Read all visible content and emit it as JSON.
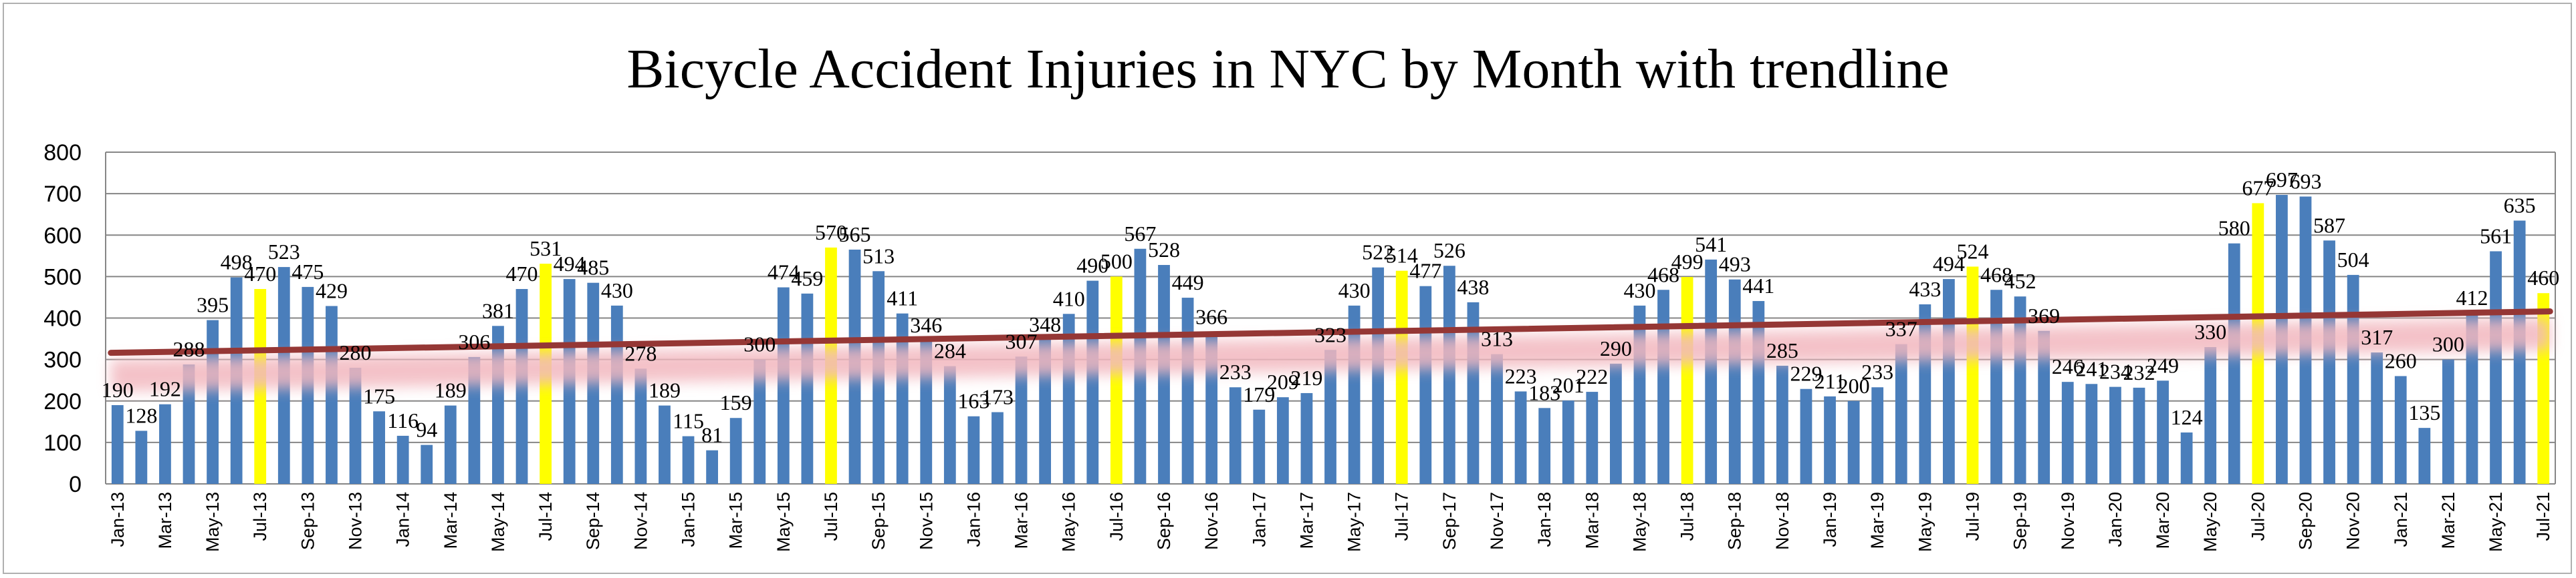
{
  "chart_data": {
    "type": "bar",
    "title": "Bicycle Accident Injuries in NYC by Month with trendline",
    "xlabel": "",
    "ylabel": "",
    "ylim": [
      0,
      800
    ],
    "yticks": [
      0,
      100,
      200,
      300,
      400,
      500,
      600,
      700,
      800
    ],
    "grid": true,
    "legend": "none",
    "categories": [
      "Jan-13",
      "Feb-13",
      "Mar-13",
      "Apr-13",
      "May-13",
      "Jun-13",
      "Jul-13",
      "Aug-13",
      "Sep-13",
      "Oct-13",
      "Nov-13",
      "Dec-13",
      "Jan-14",
      "Feb-14",
      "Mar-14",
      "Apr-14",
      "May-14",
      "Jun-14",
      "Jul-14",
      "Aug-14",
      "Sep-14",
      "Oct-14",
      "Nov-14",
      "Dec-14",
      "Jan-15",
      "Feb-15",
      "Mar-15",
      "Apr-15",
      "May-15",
      "Jun-15",
      "Jul-15",
      "Aug-15",
      "Sep-15",
      "Oct-15",
      "Nov-15",
      "Dec-15",
      "Jan-16",
      "Feb-16",
      "Mar-16",
      "Apr-16",
      "May-16",
      "Jun-16",
      "Jul-16",
      "Aug-16",
      "Sep-16",
      "Oct-16",
      "Nov-16",
      "Dec-16",
      "Jan-17",
      "Feb-17",
      "Mar-17",
      "Apr-17",
      "May-17",
      "Jun-17",
      "Jul-17",
      "Aug-17",
      "Sep-17",
      "Oct-17",
      "Nov-17",
      "Dec-17",
      "Jan-18",
      "Feb-18",
      "Mar-18",
      "Apr-18",
      "May-18",
      "Jun-18",
      "Jul-18",
      "Aug-18",
      "Sep-18",
      "Oct-18",
      "Nov-18",
      "Dec-18",
      "Jan-19",
      "Feb-19",
      "Mar-19",
      "Apr-19",
      "May-19",
      "Jun-19",
      "Jul-19",
      "Aug-19",
      "Sep-19",
      "Oct-19",
      "Nov-19",
      "Dec-19",
      "Jan-20",
      "Feb-20",
      "Mar-20",
      "Apr-20",
      "May-20",
      "Jun-20",
      "Jul-20",
      "Aug-20",
      "Sep-20",
      "Oct-20",
      "Nov-20",
      "Dec-20",
      "Jan-21",
      "Feb-21",
      "Mar-21",
      "Apr-21",
      "May-21",
      "Jun-21",
      "Jul-21"
    ],
    "values": [
      190,
      128,
      192,
      288,
      395,
      498,
      470,
      523,
      475,
      429,
      280,
      175,
      116,
      94,
      189,
      306,
      381,
      470,
      531,
      494,
      485,
      430,
      278,
      189,
      115,
      81,
      159,
      300,
      474,
      459,
      570,
      565,
      513,
      411,
      346,
      284,
      163,
      173,
      307,
      348,
      410,
      490,
      500,
      567,
      528,
      449,
      366,
      233,
      179,
      209,
      219,
      323,
      430,
      522,
      514,
      477,
      526,
      438,
      313,
      223,
      183,
      201,
      222,
      290,
      430,
      468,
      499,
      541,
      493,
      441,
      285,
      229,
      211,
      200,
      233,
      337,
      433,
      494,
      524,
      468,
      452,
      369,
      246,
      241,
      234,
      232,
      249,
      124,
      330,
      580,
      677,
      697,
      693,
      587,
      504,
      317,
      260,
      135,
      300,
      412,
      561,
      635,
      460
    ],
    "colors": {
      "bar": "#4a7ebb",
      "july_bar": "#ffff00",
      "trendline": "#953735",
      "glow": "#f2b8bf",
      "grid": "#868686",
      "axis": "#868686"
    },
    "highlight_month": "Jul",
    "trendline": {
      "type": "linear",
      "start": 316,
      "end": 416
    }
  }
}
